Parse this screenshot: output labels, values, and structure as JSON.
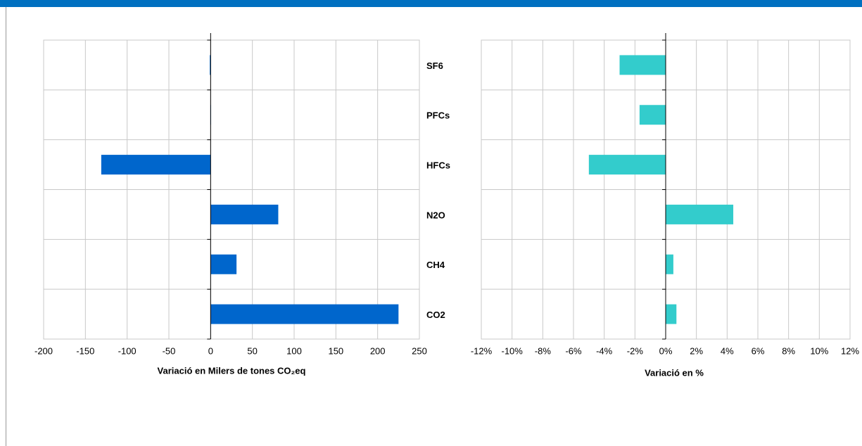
{
  "chart_data": [
    {
      "type": "bar",
      "orientation": "horizontal",
      "categories": [
        "SF6",
        "PFCs",
        "HFCs",
        "N2O",
        "CH4",
        "CO2"
      ],
      "values": [
        -1,
        0,
        -131,
        81,
        31,
        225
      ],
      "color": "#0066cc",
      "xlim": [
        -200,
        250
      ],
      "xticks": [
        -200,
        -150,
        -100,
        -50,
        0,
        50,
        100,
        150,
        200,
        250
      ],
      "xlabel": "Variació  en Milers de tones CO₂eq",
      "grid": true
    },
    {
      "type": "bar",
      "orientation": "horizontal",
      "values": [
        -3.0,
        -1.7,
        -5.0,
        4.4,
        0.5,
        0.7
      ],
      "color": "#33cccc",
      "xlim": [
        -12,
        12
      ],
      "xticks": [
        {
          "value": -12,
          "label": "-12%"
        },
        {
          "value": -10,
          "label": "-10%"
        },
        {
          "value": -8,
          "label": "-8%"
        },
        {
          "value": -6,
          "label": "-6%"
        },
        {
          "value": -4,
          "label": "-4%"
        },
        {
          "value": -2,
          "label": "-2%"
        },
        {
          "value": 0,
          "label": "0%"
        },
        {
          "value": 2,
          "label": "2%"
        },
        {
          "value": 4,
          "label": "4%"
        },
        {
          "value": 6,
          "label": "6%"
        },
        {
          "value": 8,
          "label": "8%"
        },
        {
          "value": 10,
          "label": "10%"
        },
        {
          "value": 12,
          "label": "12%"
        }
      ],
      "xlabel": "Variació en %",
      "grid": true
    }
  ]
}
